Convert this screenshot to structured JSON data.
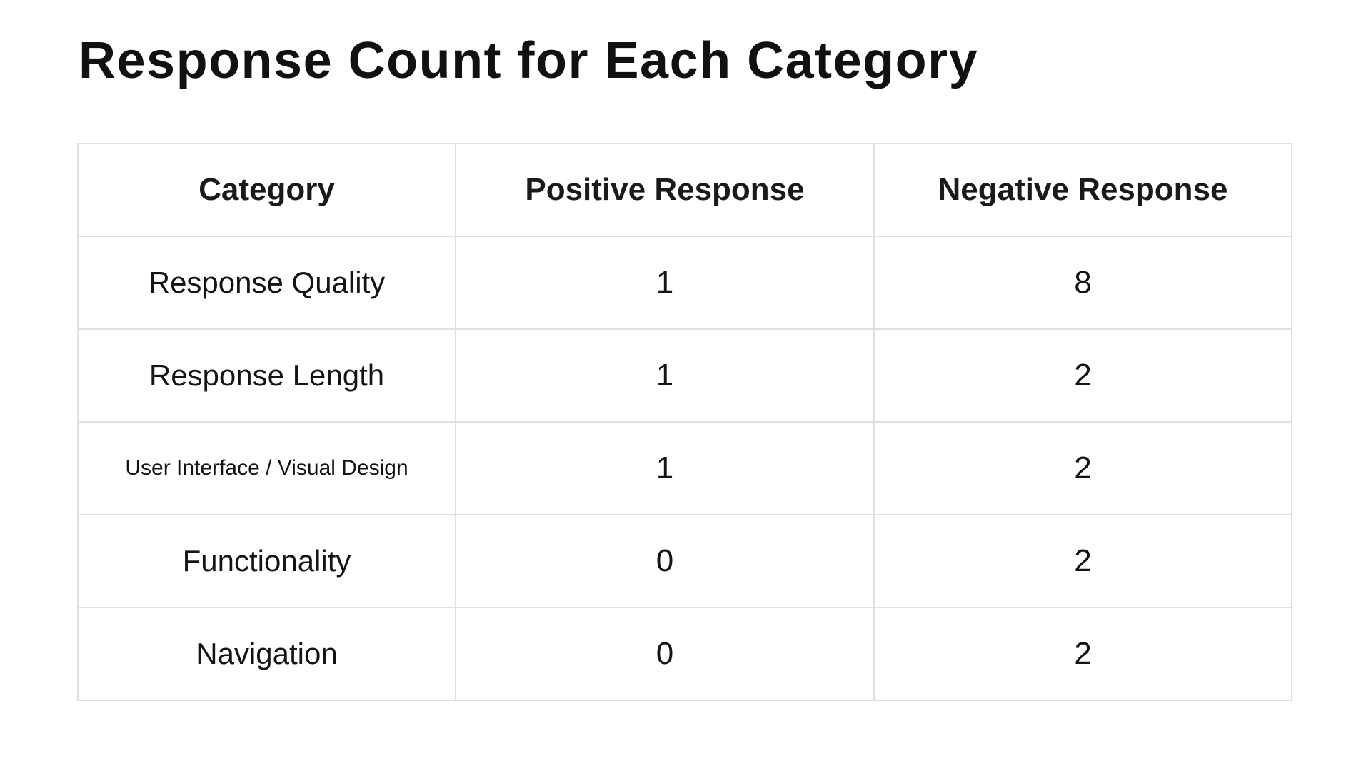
{
  "colors": {
    "background": "#ffffff",
    "text": "#141414",
    "title_text": "#111111",
    "border": "#e0e0e0"
  },
  "chart_data": {
    "type": "table",
    "title": "Response Count for Each Category",
    "columns": [
      "Category",
      "Positive Response",
      "Negative Response"
    ],
    "rows": [
      [
        "Response Quality",
        1,
        8
      ],
      [
        "Response Length",
        1,
        2
      ],
      [
        "User Interface / Visual Design",
        1,
        2
      ],
      [
        "Functionality",
        0,
        2
      ],
      [
        "Navigation",
        0,
        2
      ]
    ],
    "layout": {
      "grid": "full-borders",
      "header_row": true,
      "cell_alignment": "center"
    }
  }
}
